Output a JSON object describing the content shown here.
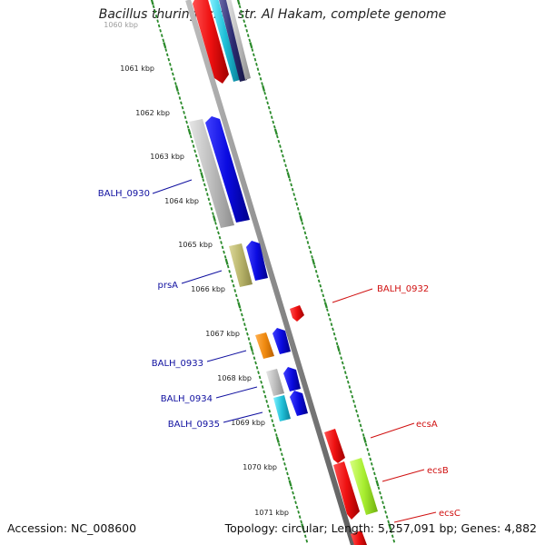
{
  "title": "Bacillus thuringiensis str. Al Hakam, complete genome",
  "footer": {
    "accession_label": "Accession:",
    "accession": "NC_008600",
    "topology_text": "Topology: circular; Length: 5,257,091 bp; Genes: 4,882"
  },
  "colors": {
    "backbone": "#8c8c8c",
    "tick_dots": "#2a8a2a",
    "label_blue": "#1010a0",
    "label_red": "#d01010",
    "gene_blue": "#0a0ae0",
    "gene_red": "#ee1010",
    "gene_grey": "#b8b8b8",
    "gene_olive": "#b8b46a",
    "gene_orange": "#f08a10",
    "gene_cyan": "#20c0d8",
    "gene_lime": "#a8ee30",
    "gene_navy": "#2a2a70"
  },
  "kbp_ticks": [
    "1060 kbp",
    "1061 kbp",
    "1062 kbp",
    "1063 kbp",
    "1064 kbp",
    "1065 kbp",
    "1066 kbp",
    "1067 kbp",
    "1068 kbp",
    "1069 kbp",
    "1070 kbp",
    "1071 kbp"
  ],
  "gene_labels": [
    {
      "name": "BALH_0930",
      "strand": "minus"
    },
    {
      "name": "prsA",
      "strand": "minus"
    },
    {
      "name": "BALH_0932",
      "strand": "plus"
    },
    {
      "name": "BALH_0933",
      "strand": "minus"
    },
    {
      "name": "BALH_0934",
      "strand": "minus"
    },
    {
      "name": "BALH_0935",
      "strand": "minus"
    },
    {
      "name": "ecsA",
      "strand": "plus"
    },
    {
      "name": "ecsB",
      "strand": "plus"
    },
    {
      "name": "ecsC",
      "strand": "plus"
    }
  ]
}
